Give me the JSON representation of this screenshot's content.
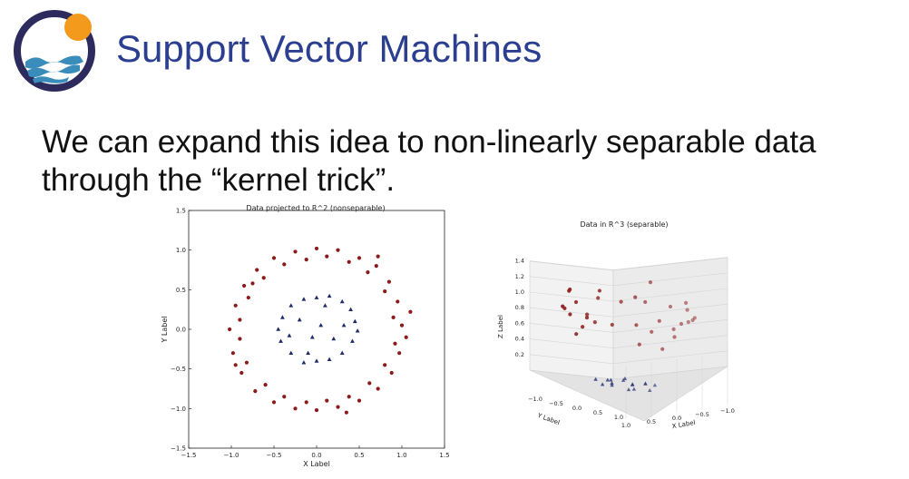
{
  "slide": {
    "title": "Support Vector Machines",
    "body_lines": [
      "We can expand this idea to non-linearly separable data",
      "through the “kernel trick”."
    ]
  },
  "colors": {
    "title": "#2b3e8f",
    "logo_ring": "#2d2a5e",
    "logo_sun": "#f39a1d",
    "logo_wave": "#3a8dbb",
    "outer_class": "#8b1a1a",
    "inner_class": "#1f2a6b"
  },
  "chart_data": [
    {
      "type": "scatter",
      "title": "Data projected to R^2 (nonseparable)",
      "xlabel": "X Label",
      "ylabel": "Y Label",
      "xlim": [
        -1.5,
        1.5
      ],
      "ylim": [
        -1.5,
        1.5
      ],
      "xticks": [
        "−1.5",
        "−1.0",
        "−0.5",
        "0.0",
        "0.5",
        "1.0",
        "1.5"
      ],
      "yticks": [
        "1.5",
        "1.0",
        "0.5",
        "0.0",
        "−0.5",
        "−1.0",
        "−1.5"
      ],
      "grid": false,
      "series": [
        {
          "marker": "circle",
          "color": "#8b1a1a",
          "points": [
            [
              1.0,
              0.05
            ],
            [
              0.95,
              0.35
            ],
            [
              0.85,
              0.6
            ],
            [
              0.7,
              0.8
            ],
            [
              0.5,
              0.9
            ],
            [
              0.25,
              1.0
            ],
            [
              0.0,
              1.02
            ],
            [
              -0.25,
              0.98
            ],
            [
              -0.5,
              0.9
            ],
            [
              -0.7,
              0.75
            ],
            [
              -0.85,
              0.55
            ],
            [
              -0.95,
              0.3
            ],
            [
              -1.02,
              0.0
            ],
            [
              -0.98,
              -0.3
            ],
            [
              -0.88,
              -0.55
            ],
            [
              -0.72,
              -0.78
            ],
            [
              -0.5,
              -0.92
            ],
            [
              -0.25,
              -1.0
            ],
            [
              0.0,
              -1.02
            ],
            [
              0.25,
              -0.98
            ],
            [
              0.5,
              -0.9
            ],
            [
              0.72,
              -0.75
            ],
            [
              0.88,
              -0.55
            ],
            [
              0.97,
              -0.3
            ],
            [
              1.05,
              -0.1
            ],
            [
              0.9,
              0.15
            ],
            [
              0.8,
              0.48
            ],
            [
              0.6,
              0.72
            ],
            [
              0.38,
              0.85
            ],
            [
              0.12,
              0.92
            ],
            [
              -0.12,
              0.88
            ],
            [
              -0.38,
              0.82
            ],
            [
              -0.62,
              0.65
            ],
            [
              -0.8,
              0.4
            ],
            [
              -0.9,
              0.12
            ],
            [
              -0.9,
              -0.12
            ],
            [
              -0.82,
              -0.42
            ],
            [
              -0.6,
              -0.7
            ],
            [
              -0.38,
              -0.85
            ],
            [
              -0.12,
              -0.92
            ],
            [
              0.12,
              -0.9
            ],
            [
              0.38,
              -0.85
            ],
            [
              0.62,
              -0.68
            ],
            [
              0.8,
              -0.45
            ],
            [
              0.92,
              -0.18
            ],
            [
              1.1,
              0.22
            ],
            [
              0.72,
              0.92
            ],
            [
              -0.75,
              0.58
            ],
            [
              -0.95,
              -0.45
            ],
            [
              0.35,
              -1.05
            ]
          ]
        },
        {
          "marker": "triangle",
          "color": "#1f2a6b",
          "points": [
            [
              0.45,
              0.1
            ],
            [
              0.4,
              0.25
            ],
            [
              0.3,
              0.35
            ],
            [
              0.15,
              0.42
            ],
            [
              0.0,
              0.4
            ],
            [
              -0.15,
              0.38
            ],
            [
              -0.3,
              0.3
            ],
            [
              -0.4,
              0.15
            ],
            [
              -0.45,
              0.0
            ],
            [
              -0.42,
              -0.15
            ],
            [
              -0.3,
              -0.3
            ],
            [
              -0.15,
              -0.42
            ],
            [
              0.0,
              -0.4
            ],
            [
              0.15,
              -0.38
            ],
            [
              0.3,
              -0.3
            ],
            [
              0.42,
              -0.15
            ],
            [
              0.48,
              -0.02
            ],
            [
              -0.05,
              -0.1
            ],
            [
              0.05,
              0.05
            ],
            [
              -0.2,
              0.12
            ],
            [
              0.2,
              -0.12
            ],
            [
              0.32,
              0.05
            ],
            [
              -0.32,
              -0.08
            ],
            [
              0.1,
              0.3
            ],
            [
              -0.1,
              -0.3
            ]
          ]
        }
      ]
    },
    {
      "type": "scatter",
      "title": "Data in R^3 (separable)",
      "xlabel": "X Label",
      "ylabel": "Y Label",
      "zlabel": "Z Label",
      "xticks": [
        "1.0",
        "0.5",
        "0.0",
        "−0.5",
        "−1.0"
      ],
      "yticks": [
        "−1.0",
        "−0.5",
        "0.0",
        "0.5",
        "1.0"
      ],
      "zticks": [
        "1.4",
        "1.2",
        "1.0",
        "0.8",
        "0.6",
        "0.4",
        "0.2"
      ],
      "zlim": [
        0.0,
        1.5
      ],
      "grid": true,
      "series": [
        {
          "marker": "circle",
          "color": "#8b1a1a",
          "points": [
            [
              -1.0,
              0.0,
              1.0
            ],
            [
              -0.9,
              0.4,
              1.05
            ],
            [
              -0.7,
              0.7,
              1.0
            ],
            [
              -0.4,
              0.9,
              0.98
            ],
            [
              0.0,
              1.0,
              1.02
            ],
            [
              0.4,
              0.9,
              1.0
            ],
            [
              0.7,
              0.7,
              1.04
            ],
            [
              0.9,
              0.4,
              0.97
            ],
            [
              1.0,
              0.0,
              1.0
            ],
            [
              0.9,
              -0.4,
              1.03
            ],
            [
              0.7,
              -0.7,
              0.99
            ],
            [
              0.4,
              -0.9,
              1.01
            ],
            [
              0.0,
              -1.0,
              1.0
            ],
            [
              -0.4,
              -0.9,
              1.02
            ],
            [
              -0.7,
              -0.7,
              0.98
            ],
            [
              -0.9,
              -0.4,
              1.0
            ],
            [
              -0.8,
              0.2,
              0.7
            ],
            [
              -0.6,
              0.5,
              0.75
            ],
            [
              0.6,
              0.5,
              0.72
            ],
            [
              0.8,
              -0.2,
              0.78
            ],
            [
              0.2,
              -0.8,
              0.7
            ],
            [
              -0.3,
              -0.7,
              0.8
            ],
            [
              0.5,
              0.8,
              1.25
            ],
            [
              -0.6,
              0.6,
              1.3
            ],
            [
              0.8,
              0.4,
              1.2
            ],
            [
              -0.2,
              0.95,
              1.35
            ],
            [
              0.3,
              -0.9,
              1.25
            ],
            [
              -0.85,
              -0.3,
              1.2
            ],
            [
              0.95,
              -0.2,
              0.85
            ],
            [
              -0.95,
              0.1,
              0.85
            ],
            [
              0.1,
              0.98,
              0.9
            ],
            [
              -0.5,
              -0.8,
              0.9
            ]
          ]
        },
        {
          "marker": "triangle",
          "color": "#1f2a6b",
          "points": [
            [
              -0.4,
              0.0,
              0.16
            ],
            [
              -0.3,
              0.25,
              0.18
            ],
            [
              0.0,
              0.4,
              0.2
            ],
            [
              0.3,
              0.25,
              0.16
            ],
            [
              0.4,
              0.0,
              0.18
            ],
            [
              0.3,
              -0.25,
              0.17
            ],
            [
              0.0,
              -0.4,
              0.16
            ],
            [
              -0.3,
              -0.25,
              0.19
            ],
            [
              -0.15,
              0.1,
              0.2
            ],
            [
              0.15,
              -0.1,
              0.22
            ],
            [
              0.2,
              0.15,
              0.18
            ],
            [
              -0.2,
              -0.15,
              0.2
            ],
            [
              -0.35,
              0.35,
              0.25
            ],
            [
              0.35,
              0.35,
              0.22
            ],
            [
              0.0,
              0.0,
              0.12
            ],
            [
              0.1,
              0.3,
              0.24
            ]
          ]
        }
      ]
    }
  ]
}
